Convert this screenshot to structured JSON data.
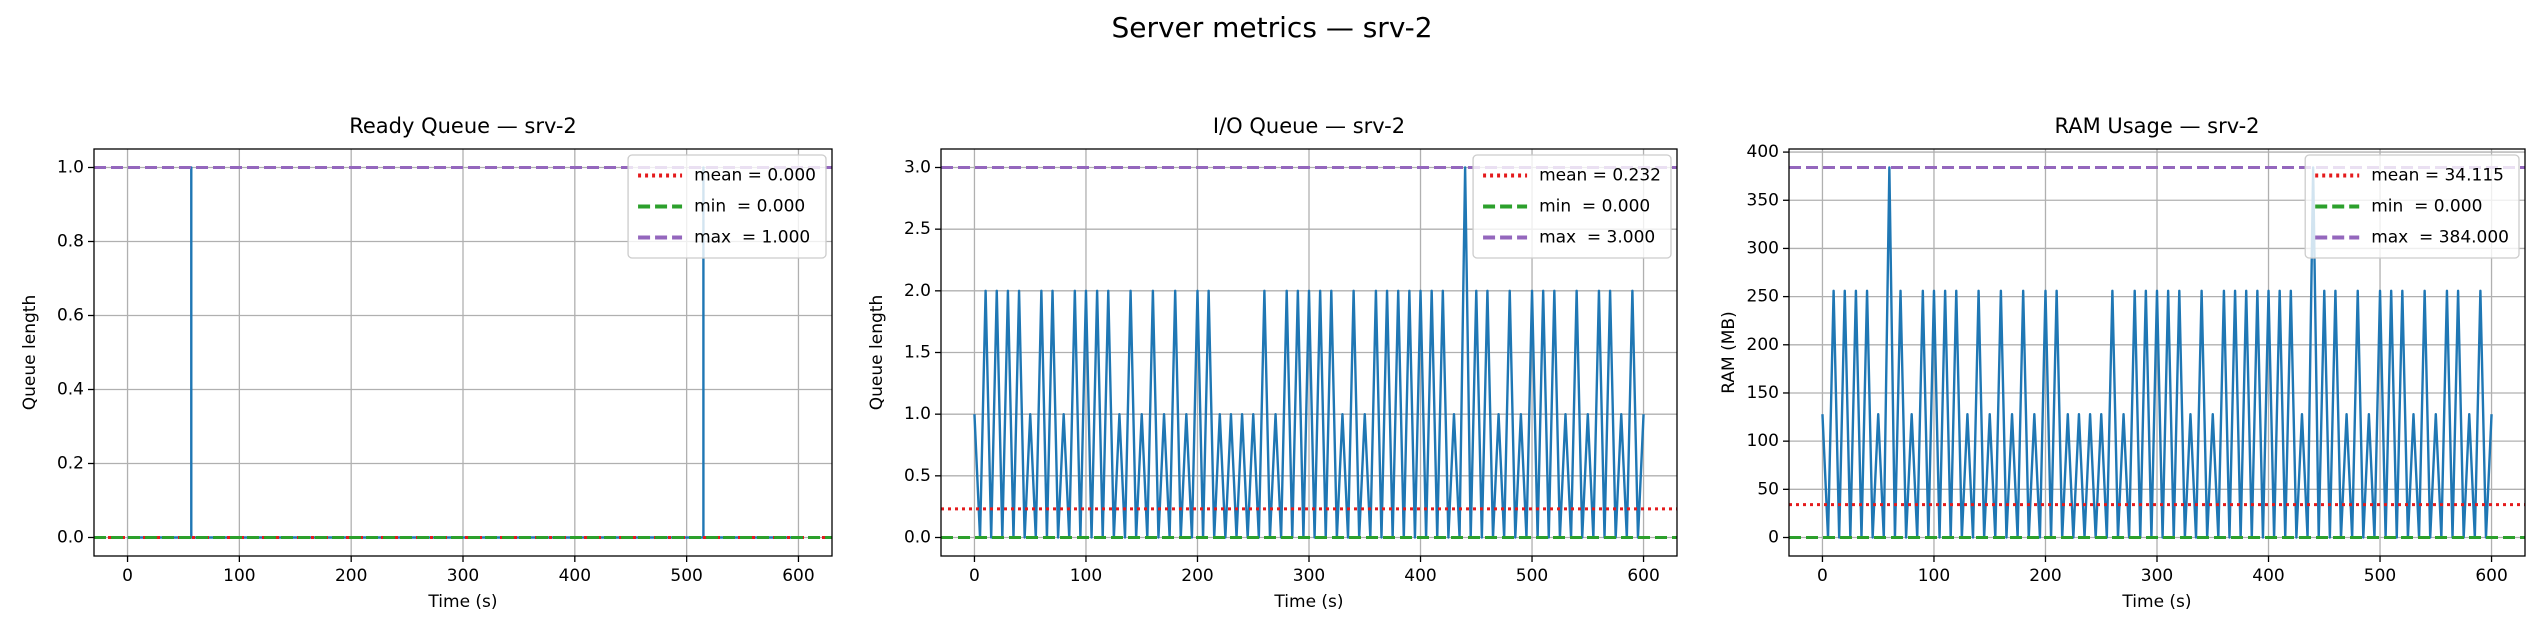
{
  "chart_data": {
    "title": "Server metrics — srv-2",
    "charts": [
      {
        "type": "line",
        "title": "Ready Queue — srv-2",
        "xlabel": "Time (s)",
        "ylabel": "Queue length",
        "x": [
          0,
          57,
          57,
          57,
          515,
          515,
          515,
          600
        ],
        "series": [
          {
            "color": "#1f77b4",
            "values": [
              0,
              0,
              1,
              0,
              0,
              1,
              0,
              0
            ]
          }
        ],
        "hlines": [
          {
            "label": "mean = 0.000",
            "value": 0,
            "color": "#e41a1c",
            "style": "dotted"
          },
          {
            "label": "min  = 0.000",
            "value": 0,
            "color": "#2ca02c",
            "style": "dashed"
          },
          {
            "label": "max  = 1.000",
            "value": 1,
            "color": "#9467bd",
            "style": "dashed"
          }
        ],
        "xlim": [
          -30,
          630
        ],
        "xticks": [
          0,
          100,
          200,
          300,
          400,
          500,
          600
        ],
        "ylim": [
          -0.05,
          1.05
        ],
        "yticks": [
          {
            "value": 0,
            "label": "0.0"
          },
          {
            "value": 0.2,
            "label": "0.2"
          },
          {
            "value": 0.4,
            "label": "0.4"
          },
          {
            "value": 0.6,
            "label": "0.6"
          },
          {
            "value": 0.8,
            "label": "0.8"
          },
          {
            "value": 1,
            "label": "1.0"
          }
        ],
        "grid": true,
        "legend": "upper right"
      },
      {
        "type": "line",
        "title": "I/O Queue — srv-2",
        "xlabel": "Time (s)",
        "ylabel": "Queue length",
        "x": [
          0,
          5,
          10,
          15,
          20,
          25,
          30,
          35,
          40,
          45,
          50,
          55,
          60,
          65,
          70,
          75,
          80,
          85,
          90,
          95,
          100,
          105,
          110,
          115,
          120,
          125,
          130,
          135,
          140,
          145,
          150,
          155,
          160,
          165,
          170,
          175,
          180,
          185,
          190,
          195,
          200,
          205,
          210,
          215,
          220,
          225,
          230,
          235,
          240,
          245,
          250,
          255,
          260,
          265,
          270,
          275,
          280,
          285,
          290,
          295,
          300,
          305,
          310,
          315,
          320,
          325,
          330,
          335,
          340,
          345,
          350,
          355,
          360,
          365,
          370,
          375,
          380,
          385,
          390,
          395,
          400,
          405,
          410,
          415,
          420,
          425,
          430,
          435,
          440,
          445,
          450,
          455,
          460,
          465,
          470,
          475,
          480,
          485,
          490,
          495,
          500,
          505,
          510,
          515,
          520,
          525,
          530,
          535,
          540,
          545,
          550,
          555,
          560,
          565,
          570,
          575,
          580,
          585,
          590,
          595,
          600
        ],
        "series": [
          {
            "color": "#1f77b4",
            "values": [
              1,
              0,
              2,
              0,
              2,
              0,
              2,
              0,
              2,
              0,
              1,
              0,
              2,
              0,
              2,
              0,
              1,
              0,
              2,
              0,
              2,
              0,
              2,
              0,
              2,
              0,
              1,
              0,
              2,
              0,
              1,
              0,
              2,
              0,
              1,
              0,
              2,
              0,
              1,
              0,
              2,
              0,
              2,
              0,
              1,
              0,
              1,
              0,
              1,
              0,
              1,
              0,
              2,
              0,
              1,
              0,
              2,
              0,
              2,
              0,
              2,
              0,
              2,
              0,
              2,
              0,
              1,
              0,
              2,
              0,
              1,
              0,
              2,
              0,
              2,
              0,
              2,
              0,
              2,
              0,
              2,
              0,
              2,
              0,
              2,
              0,
              1,
              0,
              3,
              0,
              2,
              0,
              2,
              0,
              1,
              0,
              2,
              0,
              1,
              0,
              2,
              0,
              2,
              0,
              2,
              0,
              1,
              0,
              2,
              0,
              1,
              0,
              2,
              0,
              2,
              0,
              1,
              0,
              2,
              0,
              1
            ]
          }
        ],
        "hlines": [
          {
            "label": "mean = 0.232",
            "value": 0.232,
            "color": "#e41a1c",
            "style": "dotted"
          },
          {
            "label": "min  = 0.000",
            "value": 0,
            "color": "#2ca02c",
            "style": "dashed"
          },
          {
            "label": "max  = 3.000",
            "value": 3,
            "color": "#9467bd",
            "style": "dashed"
          }
        ],
        "xlim": [
          -30,
          630
        ],
        "xticks": [
          0,
          100,
          200,
          300,
          400,
          500,
          600
        ],
        "ylim": [
          -0.15,
          3.15
        ],
        "yticks": [
          {
            "value": 0,
            "label": "0.0"
          },
          {
            "value": 0.5,
            "label": "0.5"
          },
          {
            "value": 1,
            "label": "1.0"
          },
          {
            "value": 1.5,
            "label": "1.5"
          },
          {
            "value": 2,
            "label": "2.0"
          },
          {
            "value": 2.5,
            "label": "2.5"
          },
          {
            "value": 3,
            "label": "3.0"
          }
        ],
        "grid": true,
        "legend": "upper right"
      },
      {
        "type": "line",
        "title": "RAM Usage — srv-2",
        "xlabel": "Time (s)",
        "ylabel": "RAM (MB)",
        "x": [
          0,
          5,
          10,
          15,
          20,
          25,
          30,
          35,
          40,
          45,
          50,
          55,
          60,
          65,
          70,
          75,
          80,
          85,
          90,
          95,
          100,
          105,
          110,
          115,
          120,
          125,
          130,
          135,
          140,
          145,
          150,
          155,
          160,
          165,
          170,
          175,
          180,
          185,
          190,
          195,
          200,
          205,
          210,
          215,
          220,
          225,
          230,
          235,
          240,
          245,
          250,
          255,
          260,
          265,
          270,
          275,
          280,
          285,
          290,
          295,
          300,
          305,
          310,
          315,
          320,
          325,
          330,
          335,
          340,
          345,
          350,
          355,
          360,
          365,
          370,
          375,
          380,
          385,
          390,
          395,
          400,
          405,
          410,
          415,
          420,
          425,
          430,
          435,
          440,
          445,
          450,
          455,
          460,
          465,
          470,
          475,
          480,
          485,
          490,
          495,
          500,
          505,
          510,
          515,
          520,
          525,
          530,
          535,
          540,
          545,
          550,
          555,
          560,
          565,
          570,
          575,
          580,
          585,
          590,
          595,
          600
        ],
        "series": [
          {
            "color": "#1f77b4",
            "values": [
              128,
              0,
              256,
              0,
              256,
              0,
              256,
              0,
              256,
              0,
              128,
              0,
              384,
              0,
              256,
              0,
              128,
              0,
              256,
              0,
              256,
              0,
              256,
              0,
              256,
              0,
              128,
              0,
              256,
              0,
              128,
              0,
              256,
              0,
              128,
              0,
              256,
              0,
              128,
              0,
              256,
              0,
              256,
              0,
              128,
              0,
              128,
              0,
              128,
              0,
              128,
              0,
              256,
              0,
              128,
              0,
              256,
              0,
              256,
              0,
              256,
              0,
              256,
              0,
              256,
              0,
              128,
              0,
              256,
              0,
              128,
              0,
              256,
              0,
              256,
              0,
              256,
              0,
              256,
              0,
              256,
              0,
              256,
              0,
              256,
              0,
              128,
              0,
              384,
              0,
              256,
              0,
              256,
              0,
              128,
              0,
              256,
              0,
              128,
              0,
              256,
              0,
              256,
              0,
              256,
              0,
              128,
              0,
              256,
              0,
              128,
              0,
              256,
              0,
              256,
              0,
              128,
              0,
              256,
              0,
              128
            ]
          }
        ],
        "hlines": [
          {
            "label": "mean = 34.115",
            "value": 34.115,
            "color": "#e41a1c",
            "style": "dotted"
          },
          {
            "label": "min  = 0.000",
            "value": 0,
            "color": "#2ca02c",
            "style": "dashed"
          },
          {
            "label": "max  = 384.000",
            "value": 384,
            "color": "#9467bd",
            "style": "dashed"
          }
        ],
        "xlim": [
          -30,
          630
        ],
        "xticks": [
          0,
          100,
          200,
          300,
          400,
          500,
          600
        ],
        "ylim": [
          -19.2,
          403.2
        ],
        "yticks": [
          0,
          50,
          100,
          150,
          200,
          250,
          300,
          350,
          400
        ],
        "grid": true,
        "legend": "upper right"
      }
    ]
  }
}
